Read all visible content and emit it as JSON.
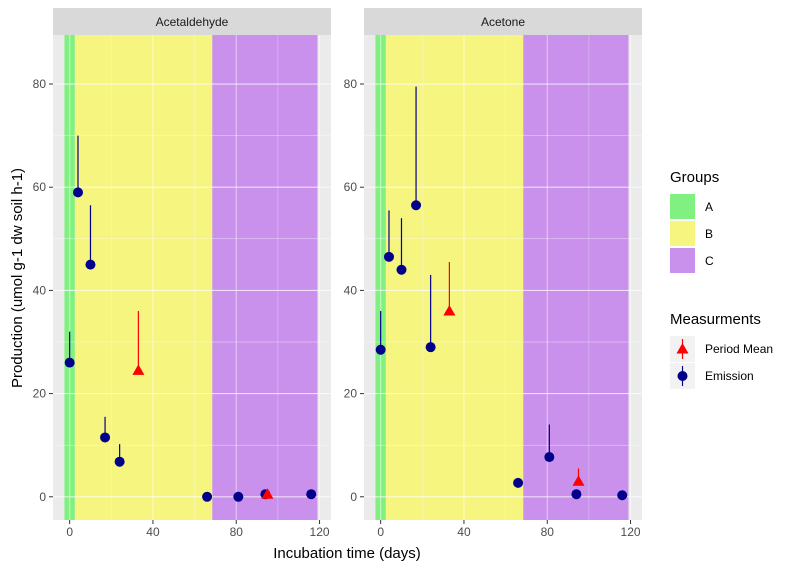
{
  "chart_data": [
    {
      "type": "scatter",
      "title": "Acetaldehyde",
      "xlabel": "Incubation time (days)",
      "ylabel": "Production (umol g-1 dw soil h-1)",
      "xlim": [
        -8,
        125.5
      ],
      "ylim": [
        -4.5,
        89.5
      ],
      "xticks": [
        0,
        40,
        80,
        120
      ],
      "yticks": [
        0,
        20,
        40,
        60,
        80
      ],
      "grid": true,
      "groups": [
        {
          "name": "A",
          "from": -2.5,
          "to": 2.5
        },
        {
          "name": "B",
          "from": 2.5,
          "to": 68.5
        },
        {
          "name": "C",
          "from": 68.5,
          "to": 119
        }
      ],
      "series": [
        {
          "name": "Emission",
          "x": [
            0,
            4,
            10,
            17,
            24,
            66,
            81,
            94,
            116
          ],
          "y": [
            26,
            59,
            45,
            11.5,
            6.8,
            0,
            0,
            0.5,
            0.5
          ],
          "err_upper": [
            32,
            70,
            56.5,
            15.5,
            10.2,
            0,
            0,
            0.5,
            0.5
          ]
        },
        {
          "name": "Period Mean",
          "x": [
            33,
            95
          ],
          "y": [
            24.5,
            0.5
          ],
          "err_upper": [
            36,
            0.5
          ]
        }
      ]
    },
    {
      "type": "scatter",
      "title": "Acetone",
      "xlim": [
        -8,
        125.5
      ],
      "ylim": [
        -4.5,
        89.5
      ],
      "xticks": [
        0,
        40,
        80,
        120
      ],
      "yticks": [
        0,
        20,
        40,
        60,
        80
      ],
      "grid": true,
      "groups": [
        {
          "name": "A",
          "from": -2.5,
          "to": 2.5
        },
        {
          "name": "B",
          "from": 2.5,
          "to": 68.5
        },
        {
          "name": "C",
          "from": 68.5,
          "to": 119
        }
      ],
      "series": [
        {
          "name": "Emission",
          "x": [
            0,
            4,
            10,
            17,
            24,
            66,
            81,
            94,
            116
          ],
          "y": [
            28.5,
            46.5,
            44,
            56.5,
            29,
            2.7,
            7.7,
            0.5,
            0.3
          ],
          "err_upper": [
            36,
            55.5,
            54,
            79.5,
            43,
            3.3,
            14,
            0.5,
            0.3
          ]
        },
        {
          "name": "Period Mean",
          "x": [
            33,
            95
          ],
          "y": [
            36,
            3
          ],
          "err_upper": [
            45.5,
            5.5
          ]
        }
      ]
    }
  ],
  "legend": {
    "groups_title": "Groups",
    "groups": [
      {
        "label": "A",
        "color": "#80f080"
      },
      {
        "label": "B",
        "color": "#f5f580"
      },
      {
        "label": "C",
        "color": "#c990ec"
      }
    ],
    "measurements_title": "Measurments",
    "measurements": [
      {
        "label": "Period Mean",
        "color": "#ff0000",
        "shape": "triangle"
      },
      {
        "label": "Emission",
        "color": "#00008b",
        "shape": "circle"
      }
    ],
    "placement": "right"
  }
}
